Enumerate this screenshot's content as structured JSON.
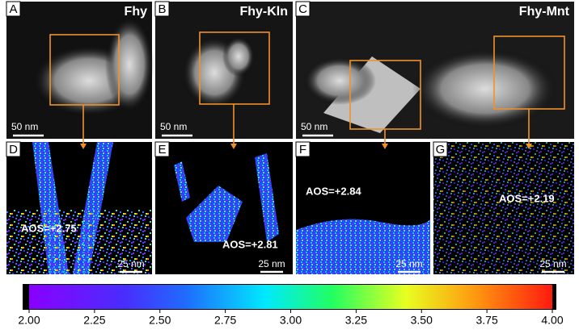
{
  "panels": [
    {
      "letter": "A",
      "title": "Fhy",
      "scale_bar": "50 nm"
    },
    {
      "letter": "B",
      "title": "Fhy-Kln",
      "scale_bar": "50 nm"
    },
    {
      "letter": "C",
      "title": "Fhy-Mnt",
      "scale_bar": "50 nm"
    }
  ],
  "maps": [
    {
      "letter": "D",
      "annotation": "AOS=+2.75",
      "scale_bar": "25 nm"
    },
    {
      "letter": "E",
      "annotation": "AOS=+2.81",
      "scale_bar": "25 nm"
    },
    {
      "letter": "F",
      "annotation": "AOS=+2.84",
      "scale_bar": "25 nm"
    },
    {
      "letter": "G",
      "annotation": "AOS=+2.19",
      "scale_bar": "25 nm"
    }
  ],
  "colorbar": {
    "range": [
      2,
      4
    ],
    "ticks": [
      {
        "value": 2,
        "label": "2.00"
      },
      {
        "value": 2.25,
        "label": "2.25"
      },
      {
        "value": 2.5,
        "label": "2.50"
      },
      {
        "value": 2.75,
        "label": "2.75"
      },
      {
        "value": 3,
        "label": "3.00"
      },
      {
        "value": 3.25,
        "label": "3.25"
      },
      {
        "value": 3.5,
        "label": "3.50"
      },
      {
        "value": 3.75,
        "label": "3.75"
      },
      {
        "value": 4,
        "label": "4.00"
      }
    ]
  }
}
